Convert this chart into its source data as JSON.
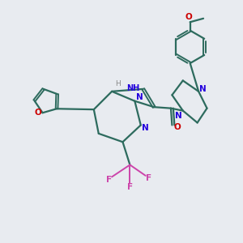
{
  "background_color": "#e8ebf0",
  "bond_color": "#2d6b5e",
  "nitrogen_color": "#2200dd",
  "oxygen_color": "#cc0000",
  "fluorine_color": "#cc44aa",
  "line_width": 1.6,
  "figsize": [
    3.0,
    3.0
  ],
  "dpi": 100,
  "xlim": [
    0,
    10
  ],
  "ylim": [
    0,
    10
  ]
}
